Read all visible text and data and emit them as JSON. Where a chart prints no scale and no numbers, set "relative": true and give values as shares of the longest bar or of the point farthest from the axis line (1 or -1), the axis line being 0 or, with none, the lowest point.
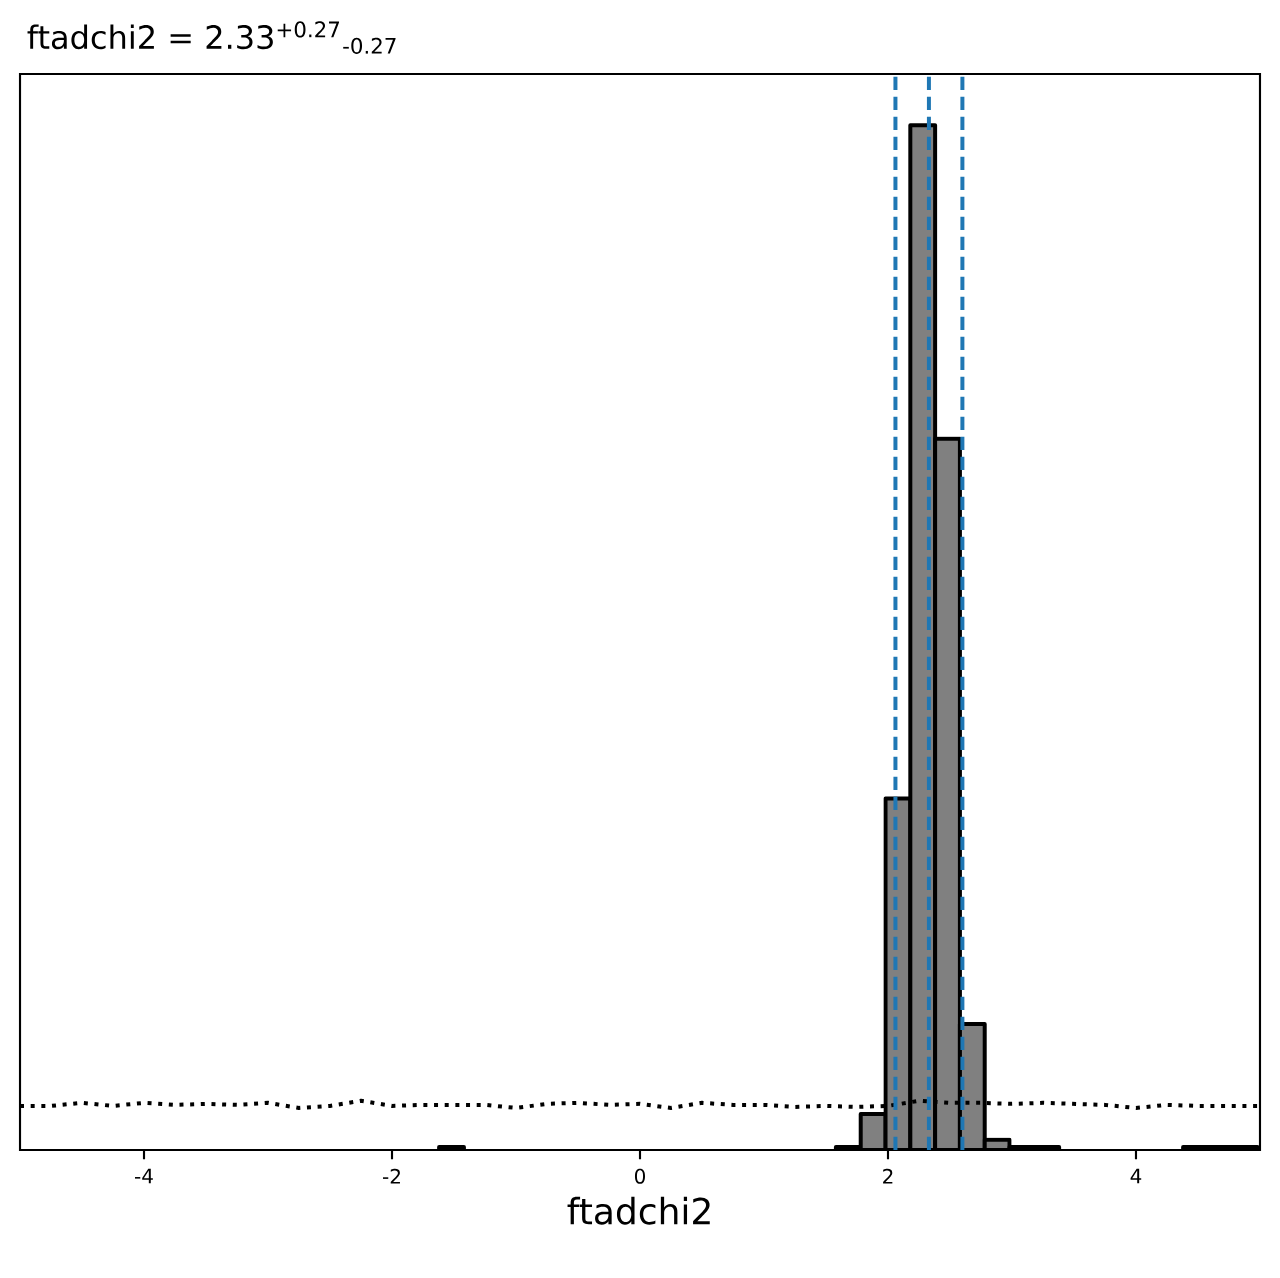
{
  "chart_data": {
    "type": "histogram",
    "title": "ftadchi2 = 2.33$^{+0.27}$$_{-0.27}$",
    "xlabel": "ftadchi2",
    "relative": true,
    "xlim": [
      -5,
      5
    ],
    "xticks": [
      -4,
      -2,
      0,
      2,
      4
    ],
    "grid": false,
    "series": [
      {
        "color": "#808080",
        "bins": [
          -1.62,
          -1.42,
          -1.22,
          -1.02,
          -0.82,
          -0.62,
          -0.42,
          -0.22,
          -0.02,
          0.18,
          0.38,
          0.58,
          0.78,
          0.98,
          1.18,
          1.38,
          1.58,
          1.78,
          1.98,
          2.18,
          2.38,
          2.58,
          2.78,
          2.98,
          3.18,
          3.38,
          3.58,
          3.78,
          3.98,
          4.18,
          4.38,
          4.58,
          4.78,
          4.98
        ],
        "values": [
          0.003,
          0,
          0,
          0,
          0,
          0,
          0,
          0,
          0,
          0,
          0,
          0,
          0,
          0,
          0,
          0,
          0.003,
          0.035,
          0.343,
          1,
          0.694,
          0.123,
          0.01,
          0.003,
          0.003,
          0,
          0,
          0,
          0,
          0,
          0.003,
          0.003,
          0.003
        ]
      },
      {
        "type": "line",
        "color": "#000000",
        "line_style": "dotted",
        "x": [
          -5,
          -4.75,
          -4.5,
          -4.25,
          -4,
          -3.75,
          -3.5,
          -3.25,
          -3,
          -2.75,
          -2.5,
          -2.25,
          -2,
          -1.75,
          -1.5,
          -1.25,
          -1,
          -0.75,
          -0.5,
          -0.25,
          0,
          0.25,
          0.5,
          0.75,
          1,
          1.25,
          1.5,
          1.75,
          2,
          2.25,
          2.5,
          2.75,
          3,
          3.25,
          3.5,
          3.75,
          4,
          4.25,
          4.5,
          4.75,
          5
        ],
        "values": [
          0.043,
          0.043,
          0.046,
          0.043,
          0.046,
          0.044,
          0.045,
          0.044,
          0.046,
          0.041,
          0.043,
          0.048,
          0.043,
          0.044,
          0.044,
          0.044,
          0.041,
          0.045,
          0.046,
          0.044,
          0.045,
          0.041,
          0.046,
          0.044,
          0.044,
          0.042,
          0.043,
          0.042,
          0.043,
          0.048,
          0.046,
          0.046,
          0.045,
          0.046,
          0.045,
          0.044,
          0.041,
          0.044,
          0.043,
          0.043,
          0.043
        ]
      }
    ],
    "ref_lines": [
      {
        "axis": "x",
        "value": 2.06,
        "color": "#1f77b4",
        "line_style": "dashed"
      },
      {
        "axis": "x",
        "value": 2.33,
        "color": "#1f77b4",
        "line_style": "dashed"
      },
      {
        "axis": "x",
        "value": 2.6,
        "color": "#1f77b4",
        "line_style": "dashed"
      }
    ]
  }
}
